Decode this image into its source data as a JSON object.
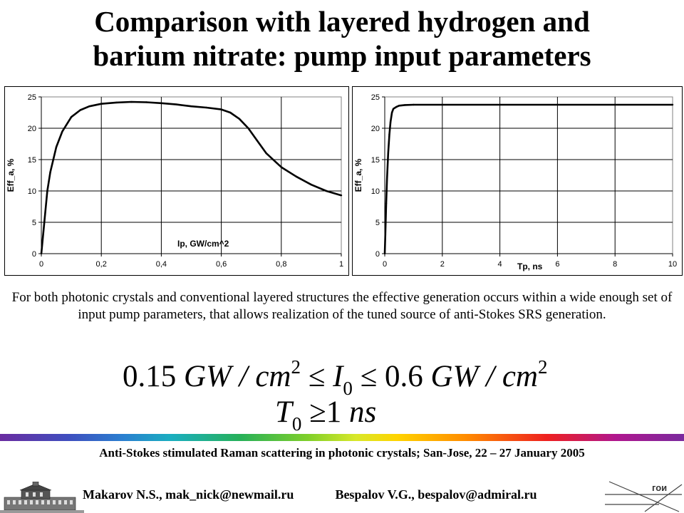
{
  "title": {
    "line1": "Comparison with layered hydrogen and",
    "line2": "barium nitrate: pump input parameters"
  },
  "description": "For both photonic crystals and conventional layered structures the effective generation occurs within a wide enough set of input pump parameters, that allows realization of the tuned source of anti-Stokes SRS generation.",
  "formulas": {
    "f1_num1": "0.15",
    "f1_unit1": "GW / cm",
    "f1_exp1": "2",
    "f1_le1": "≤",
    "f1_var": "I",
    "f1_sub": "0",
    "f1_le2": "≤",
    "f1_num2": "0.6",
    "f1_unit2": "GW / cm",
    "f1_exp2": "2",
    "f2_var": "T",
    "f2_sub": "0",
    "f2_ge": "≥",
    "f2_num": "1",
    "f2_unit": "ns"
  },
  "footer": {
    "conference": "Anti-Stokes stimulated Raman scattering in photonic crystals; San-Jose, 22 – 27 January  2005",
    "author1": "Makarov N.S., mak_nick@newmail.ru",
    "author2": "Bespalov V.G., bespalov@admiral.ru",
    "logo_text": "гои"
  },
  "chart_data": [
    {
      "type": "line",
      "xlabel": "Ip, GW/cm^2",
      "ylabel": "Eff_a, %",
      "xlim": [
        0,
        1
      ],
      "ylim": [
        0,
        25
      ],
      "xticks": [
        "0",
        "0,2",
        "0,4",
        "0,6",
        "0,8",
        "1"
      ],
      "yticks": [
        "0",
        "5",
        "10",
        "15",
        "20",
        "25"
      ],
      "grid": true,
      "series": [
        {
          "x": [
            0,
            0.01,
            0.02,
            0.03,
            0.05,
            0.07,
            0.1,
            0.13,
            0.16,
            0.2,
            0.25,
            0.3,
            0.35,
            0.4,
            0.45,
            0.5,
            0.55,
            0.6,
            0.63,
            0.66,
            0.69,
            0.72,
            0.75,
            0.8,
            0.85,
            0.9,
            0.95,
            1.0
          ],
          "y": [
            0,
            5,
            10,
            13,
            17,
            19.5,
            21.8,
            22.9,
            23.5,
            23.9,
            24.1,
            24.2,
            24.15,
            24.0,
            23.8,
            23.5,
            23.3,
            23.0,
            22.5,
            21.5,
            20.0,
            18.0,
            16.0,
            13.8,
            12.3,
            11.0,
            10.0,
            9.3
          ]
        }
      ]
    },
    {
      "type": "line",
      "xlabel": "Tp, ns",
      "ylabel": "Eff_a, %",
      "xlim": [
        0,
        10
      ],
      "ylim": [
        0,
        25
      ],
      "xticks": [
        "0",
        "2",
        "4",
        "6",
        "8",
        "10"
      ],
      "yticks": [
        "0",
        "5",
        "10",
        "15",
        "20",
        "25"
      ],
      "grid": true,
      "series": [
        {
          "x": [
            0,
            0.02,
            0.05,
            0.08,
            0.12,
            0.16,
            0.2,
            0.25,
            0.3,
            0.4,
            0.5,
            0.7,
            1.0,
            2,
            4,
            6,
            8,
            10
          ],
          "y": [
            0,
            3,
            8,
            12,
            16,
            19,
            21,
            22.5,
            23.1,
            23.4,
            23.6,
            23.7,
            23.75,
            23.75,
            23.75,
            23.75,
            23.75,
            23.75
          ]
        }
      ]
    }
  ]
}
